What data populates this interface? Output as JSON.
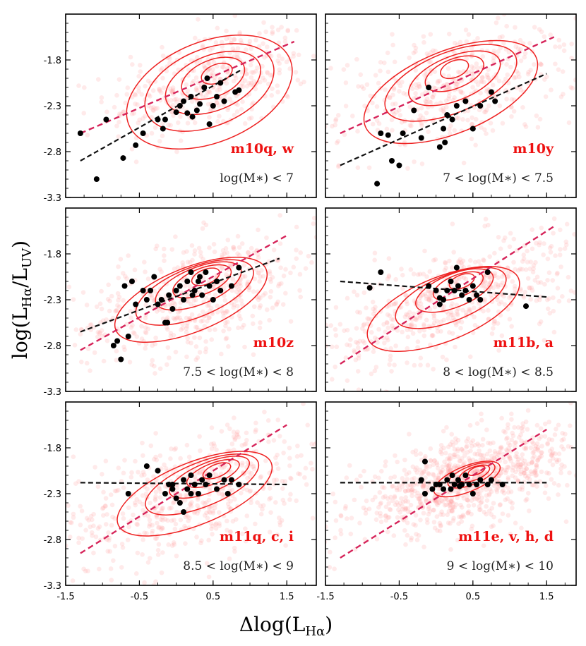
{
  "chart_data": {
    "type": "scatter",
    "xlabel": "Δlog(L",
    "xlabel_sub": "Hα",
    "xlabel_close": ")",
    "ylabel": "log(L",
    "ylabel_sub1": "Hα",
    "ylabel_mid": "/L",
    "ylabel_sub2": "UV",
    "ylabel_close": ")",
    "xlim": [
      -1.5,
      1.9
    ],
    "ylim": [
      -3.3,
      -1.3
    ],
    "xticks": [
      -1.5,
      -0.5,
      0.5,
      1.5
    ],
    "xtick_labels": [
      "-1.5",
      "-0.5",
      "0.5",
      "1.5"
    ],
    "yticks": [
      -3.3,
      -2.8,
      -2.3,
      -1.8
    ],
    "ytick_labels": [
      "-3.3",
      "-2.8",
      "-2.3",
      "-1.8"
    ],
    "colors": {
      "scatter": "#ff9f9f",
      "contour": "#ee2222",
      "fit_red": "#d6245a",
      "fit_black": "#111111",
      "points": "#000000"
    },
    "panels": [
      {
        "name": "m10q, w",
        "mass_label": "log(M∗) < 7",
        "red_fit": [
          [
            -1.3,
            -2.6
          ],
          [
            1.6,
            -1.6
          ]
        ],
        "black_fit": [
          [
            -1.3,
            -2.9
          ],
          [
            0.9,
            -1.9
          ]
        ],
        "cloud": {
          "cx": 0.45,
          "cy": -2.05,
          "sx": 0.6,
          "sy": 0.28,
          "rot": 0.35,
          "n": 420
        },
        "contours": [
          {
            "cx": 0.55,
            "cy": -1.95,
            "rx": 0.22,
            "ry": 0.1
          },
          {
            "cx": 0.5,
            "cy": -2.0,
            "rx": 0.45,
            "ry": 0.2
          },
          {
            "cx": 0.5,
            "cy": -2.05,
            "rx": 0.68,
            "ry": 0.3
          },
          {
            "cx": 0.45,
            "cy": -2.1,
            "rx": 0.92,
            "ry": 0.42
          },
          {
            "cx": 0.45,
            "cy": -2.15,
            "rx": 1.18,
            "ry": 0.55
          }
        ],
        "points": [
          [
            -1.3,
            -2.6
          ],
          [
            -1.08,
            -3.1
          ],
          [
            -0.95,
            -2.45
          ],
          [
            -0.72,
            -2.87
          ],
          [
            -0.55,
            -2.73
          ],
          [
            -0.45,
            -2.6
          ],
          [
            -0.25,
            -2.45
          ],
          [
            -0.18,
            -2.55
          ],
          [
            -0.15,
            -2.45
          ],
          [
            0.0,
            -2.37
          ],
          [
            0.05,
            -2.3
          ],
          [
            0.1,
            -2.25
          ],
          [
            0.15,
            -2.38
          ],
          [
            0.2,
            -2.2
          ],
          [
            0.22,
            -2.42
          ],
          [
            0.28,
            -2.35
          ],
          [
            0.32,
            -2.28
          ],
          [
            0.38,
            -2.1
          ],
          [
            0.42,
            -2.0
          ],
          [
            0.45,
            -2.5
          ],
          [
            0.5,
            -2.3
          ],
          [
            0.55,
            -2.2
          ],
          [
            0.6,
            -2.05
          ],
          [
            0.65,
            -2.25
          ],
          [
            0.8,
            -2.15
          ],
          [
            0.85,
            -2.13
          ]
        ]
      },
      {
        "name": "m10y",
        "mass_label": "7 < log(M∗) < 7.5",
        "red_fit": [
          [
            -1.3,
            -2.6
          ],
          [
            1.6,
            -1.55
          ]
        ],
        "black_fit": [
          [
            -1.3,
            -2.95
          ],
          [
            1.5,
            -1.95
          ]
        ],
        "cloud": {
          "cx": 0.3,
          "cy": -2.1,
          "sx": 0.7,
          "sy": 0.3,
          "rot": 0.3,
          "n": 460
        },
        "contours": [
          {
            "cx": 0.25,
            "cy": -1.9,
            "rx": 0.2,
            "ry": 0.09
          },
          {
            "cx": 0.25,
            "cy": -1.95,
            "rx": 0.42,
            "ry": 0.16
          },
          {
            "cx": 0.25,
            "cy": -2.0,
            "rx": 0.66,
            "ry": 0.24
          },
          {
            "cx": 0.2,
            "cy": -2.05,
            "rx": 0.95,
            "ry": 0.33
          },
          {
            "cx": 0.2,
            "cy": -2.15,
            "rx": 1.25,
            "ry": 0.45
          }
        ],
        "points": [
          [
            -0.8,
            -3.15
          ],
          [
            -0.6,
            -2.9
          ],
          [
            -0.5,
            -2.95
          ],
          [
            -0.45,
            -2.6
          ],
          [
            -0.3,
            -2.35
          ],
          [
            -0.2,
            -2.65
          ],
          [
            -0.1,
            -2.1
          ],
          [
            0.05,
            -2.75
          ],
          [
            0.1,
            -2.55
          ],
          [
            0.12,
            -2.7
          ],
          [
            0.15,
            -2.4
          ],
          [
            0.22,
            -2.45
          ],
          [
            0.28,
            -2.3
          ],
          [
            0.4,
            -2.25
          ],
          [
            0.5,
            -2.55
          ],
          [
            0.6,
            -2.3
          ],
          [
            0.75,
            -2.15
          ],
          [
            0.8,
            -2.25
          ],
          [
            -0.75,
            -2.6
          ],
          [
            -0.65,
            -2.62
          ]
        ]
      },
      {
        "name": "m10z",
        "mass_label": "7.5 < log(M∗) < 8",
        "red_fit": [
          [
            -1.3,
            -2.85
          ],
          [
            1.5,
            -1.6
          ]
        ],
        "black_fit": [
          [
            -1.3,
            -2.65
          ],
          [
            1.4,
            -1.85
          ]
        ],
        "cloud": {
          "cx": 0.3,
          "cy": -2.25,
          "sx": 0.75,
          "sy": 0.3,
          "rot": 0.4,
          "n": 520
        },
        "contours": [
          {
            "cx": 0.4,
            "cy": -2.05,
            "rx": 0.2,
            "ry": 0.08
          },
          {
            "cx": 0.35,
            "cy": -2.1,
            "rx": 0.42,
            "ry": 0.14
          },
          {
            "cx": 0.3,
            "cy": -2.15,
            "rx": 0.62,
            "ry": 0.2
          },
          {
            "cx": 0.25,
            "cy": -2.22,
            "rx": 0.85,
            "ry": 0.27
          },
          {
            "cx": 0.2,
            "cy": -2.3,
            "rx": 1.1,
            "ry": 0.35
          }
        ],
        "points": [
          [
            -0.85,
            -2.8
          ],
          [
            -0.8,
            -2.75
          ],
          [
            -0.75,
            -2.95
          ],
          [
            -0.65,
            -2.7
          ],
          [
            -0.7,
            -2.15
          ],
          [
            -0.6,
            -2.1
          ],
          [
            -0.55,
            -2.35
          ],
          [
            -0.4,
            -2.3
          ],
          [
            -0.35,
            -2.2
          ],
          [
            -0.3,
            -2.05
          ],
          [
            -0.25,
            -2.35
          ],
          [
            -0.2,
            -2.3
          ],
          [
            -0.15,
            -2.55
          ],
          [
            -0.1,
            -2.25
          ],
          [
            -0.05,
            -2.4
          ],
          [
            0.0,
            -2.2
          ],
          [
            0.05,
            -2.15
          ],
          [
            0.1,
            -2.3
          ],
          [
            0.15,
            -2.1
          ],
          [
            0.2,
            -2.0
          ],
          [
            0.25,
            -2.2
          ],
          [
            0.3,
            -2.1
          ],
          [
            0.35,
            -2.25
          ],
          [
            0.4,
            -2.0
          ],
          [
            0.45,
            -2.15
          ],
          [
            0.5,
            -2.3
          ],
          [
            0.55,
            -2.1
          ],
          [
            0.6,
            -2.2
          ],
          [
            0.75,
            -2.15
          ],
          [
            0.85,
            -1.95
          ],
          [
            -0.12,
            -2.55
          ],
          [
            -0.45,
            -2.2
          ],
          [
            0.22,
            -2.25
          ],
          [
            0.32,
            -2.05
          ]
        ]
      },
      {
        "name": "m11b, a",
        "mass_label": "8 < log(M∗) < 8.5",
        "red_fit": [
          [
            -1.3,
            -3.0
          ],
          [
            1.6,
            -1.5
          ]
        ],
        "black_fit": [
          [
            -1.3,
            -2.1
          ],
          [
            1.5,
            -2.27
          ]
        ],
        "cloud": {
          "cx": 0.25,
          "cy": -2.3,
          "sx": 0.8,
          "sy": 0.28,
          "rot": 0.45,
          "n": 560
        },
        "contours": [
          {
            "cx": 0.35,
            "cy": -2.1,
            "rx": 0.18,
            "ry": 0.07
          },
          {
            "cx": 0.3,
            "cy": -2.15,
            "rx": 0.36,
            "ry": 0.12
          },
          {
            "cx": 0.25,
            "cy": -2.2,
            "rx": 0.56,
            "ry": 0.18
          },
          {
            "cx": 0.2,
            "cy": -2.28,
            "rx": 0.8,
            "ry": 0.25
          },
          {
            "cx": 0.1,
            "cy": -2.4,
            "rx": 1.1,
            "ry": 0.35
          }
        ],
        "points": [
          [
            -0.75,
            -2.0
          ],
          [
            -0.9,
            -2.17
          ],
          [
            -0.1,
            -2.15
          ],
          [
            0.0,
            -2.2
          ],
          [
            0.05,
            -2.28
          ],
          [
            0.1,
            -2.3
          ],
          [
            0.15,
            -2.2
          ],
          [
            0.2,
            -2.1
          ],
          [
            0.25,
            -2.2
          ],
          [
            0.28,
            -1.95
          ],
          [
            0.3,
            -2.15
          ],
          [
            0.35,
            -2.25
          ],
          [
            0.4,
            -2.2
          ],
          [
            0.45,
            -2.3
          ],
          [
            0.5,
            -2.15
          ],
          [
            0.55,
            -2.25
          ],
          [
            0.6,
            -2.3
          ],
          [
            0.7,
            -2.0
          ],
          [
            1.22,
            -2.37
          ],
          [
            0.05,
            -2.35
          ]
        ]
      },
      {
        "name": "m11q, c, i",
        "mass_label": "8.5 < log(M∗) < 9",
        "red_fit": [
          [
            -1.3,
            -2.95
          ],
          [
            1.5,
            -1.55
          ]
        ],
        "black_fit": [
          [
            -1.3,
            -2.18
          ],
          [
            1.5,
            -2.2
          ]
        ],
        "cloud": {
          "cx": 0.25,
          "cy": -2.3,
          "sx": 0.9,
          "sy": 0.32,
          "rot": 0.4,
          "n": 620
        },
        "contours": [
          {
            "cx": 0.55,
            "cy": -2.05,
            "rx": 0.2,
            "ry": 0.07
          },
          {
            "cx": 0.5,
            "cy": -2.08,
            "rx": 0.38,
            "ry": 0.11
          },
          {
            "cx": 0.45,
            "cy": -2.12,
            "rx": 0.58,
            "ry": 0.16
          },
          {
            "cx": 0.35,
            "cy": -2.2,
            "rx": 0.82,
            "ry": 0.24
          },
          {
            "cx": 0.25,
            "cy": -2.3,
            "rx": 1.12,
            "ry": 0.34
          }
        ],
        "points": [
          [
            -0.65,
            -2.3
          ],
          [
            -0.4,
            -2.0
          ],
          [
            -0.25,
            -2.05
          ],
          [
            -0.15,
            -2.3
          ],
          [
            -0.1,
            -2.2
          ],
          [
            -0.05,
            -2.25
          ],
          [
            0.0,
            -2.35
          ],
          [
            0.05,
            -2.4
          ],
          [
            0.1,
            -2.15
          ],
          [
            0.15,
            -2.25
          ],
          [
            0.2,
            -2.1
          ],
          [
            0.25,
            -2.2
          ],
          [
            0.3,
            -2.3
          ],
          [
            0.35,
            -2.15
          ],
          [
            0.4,
            -2.2
          ],
          [
            0.45,
            -2.1
          ],
          [
            0.55,
            -2.25
          ],
          [
            0.65,
            -2.15
          ],
          [
            0.7,
            -2.3
          ],
          [
            0.75,
            -2.15
          ],
          [
            0.85,
            -2.2
          ],
          [
            0.1,
            -2.5
          ],
          [
            -0.05,
            -2.2
          ],
          [
            0.2,
            -2.3
          ]
        ]
      },
      {
        "name": "m11e, v, h, d",
        "mass_label": "9 < log(M∗) < 10",
        "red_fit": [
          [
            -1.3,
            -3.0
          ],
          [
            1.5,
            -1.6
          ]
        ],
        "black_fit": [
          [
            -1.3,
            -2.18
          ],
          [
            1.5,
            -2.18
          ]
        ],
        "cloud": {
          "cx": 0.4,
          "cy": -2.15,
          "sx": 0.7,
          "sy": 0.22,
          "rot": 0.4,
          "n": 900
        },
        "contours": [
          {
            "cx": 0.55,
            "cy": -2.05,
            "rx": 0.12,
            "ry": 0.04
          },
          {
            "cx": 0.52,
            "cy": -2.08,
            "rx": 0.22,
            "ry": 0.07
          },
          {
            "cx": 0.48,
            "cy": -2.1,
            "rx": 0.34,
            "ry": 0.1
          },
          {
            "cx": 0.42,
            "cy": -2.14,
            "rx": 0.48,
            "ry": 0.14
          }
        ],
        "points": [
          [
            -0.15,
            -1.95
          ],
          [
            -0.2,
            -2.15
          ],
          [
            -0.15,
            -2.3
          ],
          [
            -0.05,
            -2.25
          ],
          [
            0.0,
            -2.2
          ],
          [
            0.05,
            -2.2
          ],
          [
            0.1,
            -2.25
          ],
          [
            0.15,
            -2.15
          ],
          [
            0.2,
            -2.25
          ],
          [
            0.25,
            -2.2
          ],
          [
            0.3,
            -2.15
          ],
          [
            0.35,
            -2.2
          ],
          [
            0.4,
            -2.1
          ],
          [
            0.45,
            -2.2
          ],
          [
            0.5,
            -2.3
          ],
          [
            0.55,
            -2.2
          ],
          [
            0.6,
            -2.15
          ],
          [
            0.7,
            -2.2
          ],
          [
            0.75,
            -2.15
          ],
          [
            0.9,
            -2.2
          ],
          [
            0.22,
            -2.1
          ],
          [
            0.32,
            -2.22
          ]
        ]
      }
    ]
  }
}
